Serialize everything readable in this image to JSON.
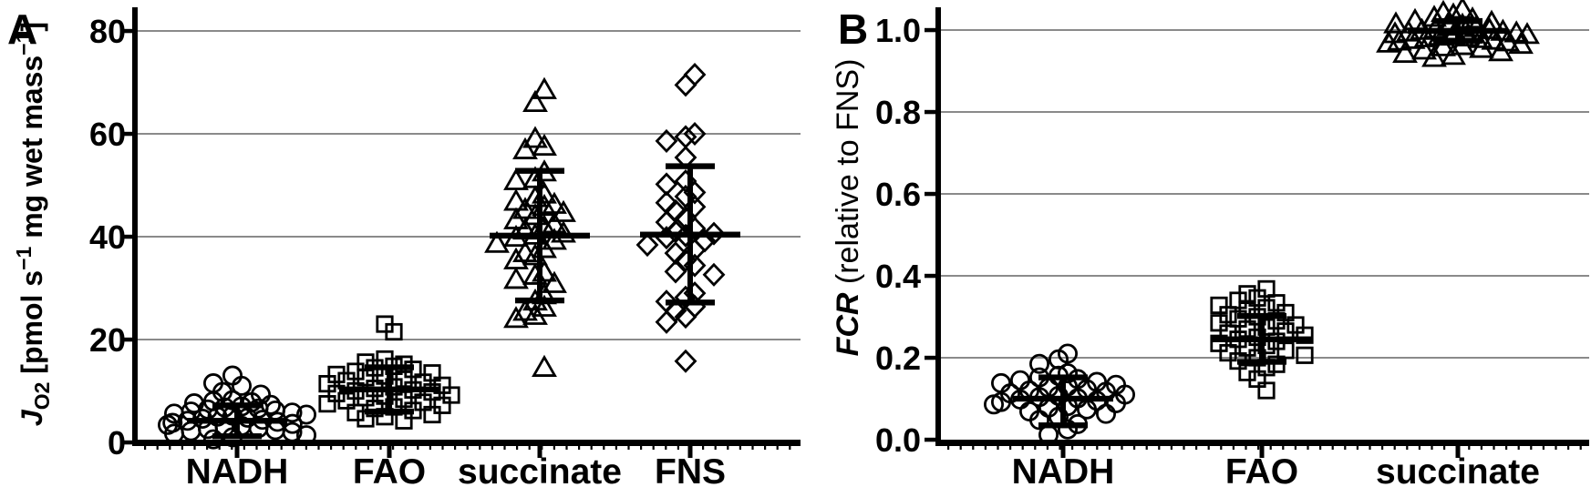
{
  "figure": {
    "background": "#ffffff",
    "ink_color": "#000000",
    "grid_color": "#8a8a8a"
  },
  "chart_data": [
    {
      "panel_label": "A",
      "type": "scatter",
      "ylabel_text": "JO2 [pmol s-1 mg wet mass-1]",
      "ylabel_segments": [
        {
          "t": "J",
          "s": "bi"
        },
        {
          "t": "O2",
          "s": "bsub"
        },
        {
          "t": " [pmol s",
          "s": "b"
        },
        {
          "t": "−1",
          "s": "bsup"
        },
        {
          "t": " mg wet mass",
          "s": "b"
        },
        {
          "t": "−1",
          "s": "bsup"
        },
        {
          "t": "]",
          "s": "b"
        }
      ],
      "ylim": [
        0,
        85
      ],
      "yticks": [
        {
          "value": 0,
          "label": "0"
        },
        {
          "value": 20,
          "label": "20"
        },
        {
          "value": 40,
          "label": "40"
        },
        {
          "value": 60,
          "label": "60"
        },
        {
          "value": 80,
          "label": "80"
        }
      ],
      "grid_values": [
        20,
        40,
        60,
        80
      ],
      "grid_on": true,
      "categories": [
        "NADH",
        "FAO",
        "succinate",
        "FNS"
      ],
      "groups": [
        {
          "category": "NADH",
          "marker": "circle",
          "mean": 4.2,
          "sd_low": 1.2,
          "sd_high": 7.2,
          "values": [
            13.0,
            11.5,
            11.0,
            9.8,
            9.3,
            8.2,
            8.0,
            7.8,
            7.6,
            7.3,
            7.0,
            6.8,
            6.6,
            6.4,
            6.2,
            6.0,
            5.8,
            5.6,
            5.4,
            5.2,
            5.0,
            4.8,
            4.6,
            4.4,
            4.2,
            4.0,
            3.8,
            3.6,
            3.4,
            3.2,
            3.0,
            2.8,
            2.6,
            2.4,
            2.2,
            2.0,
            1.7,
            1.4,
            1.0,
            0.6
          ]
        },
        {
          "category": "FAO",
          "marker": "square",
          "mean": 10.3,
          "sd_low": 6.0,
          "sd_high": 14.6,
          "values": [
            23.0,
            21.5,
            16.2,
            15.6,
            15.2,
            14.8,
            14.5,
            14.2,
            13.8,
            13.5,
            13.2,
            12.9,
            12.6,
            12.3,
            12.0,
            11.7,
            11.4,
            11.1,
            10.8,
            10.5,
            10.2,
            10.0,
            9.8,
            9.5,
            9.2,
            9.0,
            8.7,
            8.4,
            8.1,
            7.8,
            7.5,
            7.2,
            6.9,
            6.6,
            6.2,
            5.8,
            5.4,
            5.0,
            4.6,
            4.2
          ]
        },
        {
          "category": "succinate",
          "marker": "triangle",
          "mean": 40.2,
          "sd_low": 27.6,
          "sd_high": 52.8,
          "values": [
            68.5,
            66.0,
            59.0,
            57.5,
            56.8,
            52.5,
            51.2,
            50.8,
            48.2,
            47.5,
            46.8,
            46.2,
            45.8,
            45.2,
            44.6,
            44.0,
            43.2,
            42.4,
            41.8,
            41.2,
            40.6,
            40.2,
            39.8,
            39.2,
            38.6,
            37.6,
            36.8,
            36.2,
            35.4,
            33.0,
            32.4,
            31.6,
            30.8,
            28.6,
            27.4,
            26.2,
            25.4,
            24.6,
            24.0,
            14.5
          ]
        },
        {
          "category": "FNS",
          "marker": "diamond",
          "mean": 40.4,
          "sd_low": 27.2,
          "sd_high": 53.7,
          "values": [
            71.5,
            69.5,
            60.0,
            59.4,
            58.6,
            55.4,
            50.8,
            50.2,
            48.6,
            47.8,
            46.6,
            45.8,
            45.0,
            43.6,
            42.8,
            41.6,
            41.0,
            40.6,
            40.2,
            39.8,
            39.2,
            38.4,
            37.4,
            36.8,
            35.4,
            34.4,
            33.2,
            32.6,
            29.0,
            28.2,
            27.4,
            26.4,
            25.6,
            24.4,
            23.4,
            15.8
          ]
        }
      ]
    },
    {
      "panel_label": "B",
      "type": "scatter",
      "ylabel_text": "FCR (relative to FNS)",
      "ylabel_segments": [
        {
          "t": "FCR",
          "s": "bi"
        },
        {
          "t": " (relative to FNS)",
          "s": "r"
        }
      ],
      "ylim": [
        0,
        1.055
      ],
      "yticks": [
        {
          "value": 0.0,
          "label": "0.0"
        },
        {
          "value": 0.2,
          "label": "0.2"
        },
        {
          "value": 0.4,
          "label": "0.4"
        },
        {
          "value": 0.6,
          "label": "0.6"
        },
        {
          "value": 0.8,
          "label": "0.8"
        },
        {
          "value": 1.0,
          "label": "1.0"
        }
      ],
      "grid_values": [
        0.2,
        0.4,
        0.6,
        0.8,
        1.0
      ],
      "grid_on": true,
      "categories": [
        "NADH",
        "FAO",
        "succinate"
      ],
      "groups": [
        {
          "category": "NADH",
          "marker": "circle",
          "mean": 0.1,
          "sd_low": 0.035,
          "sd_high": 0.152,
          "values": [
            0.21,
            0.196,
            0.185,
            0.162,
            0.156,
            0.152,
            0.148,
            0.145,
            0.141,
            0.138,
            0.134,
            0.13,
            0.127,
            0.123,
            0.12,
            0.117,
            0.113,
            0.11,
            0.107,
            0.104,
            0.101,
            0.098,
            0.095,
            0.092,
            0.089,
            0.086,
            0.082,
            0.078,
            0.074,
            0.069,
            0.063,
            0.056,
            0.048,
            0.038,
            0.025,
            0.012
          ]
        },
        {
          "category": "FAO",
          "marker": "square",
          "mean": 0.245,
          "sd_low": 0.19,
          "sd_high": 0.302,
          "values": [
            0.368,
            0.356,
            0.346,
            0.34,
            0.334,
            0.328,
            0.322,
            0.316,
            0.31,
            0.305,
            0.3,
            0.295,
            0.29,
            0.285,
            0.28,
            0.275,
            0.27,
            0.265,
            0.26,
            0.255,
            0.25,
            0.245,
            0.24,
            0.235,
            0.23,
            0.224,
            0.218,
            0.212,
            0.206,
            0.2,
            0.192,
            0.184,
            0.176,
            0.164,
            0.148,
            0.12
          ]
        },
        {
          "category": "succinate",
          "marker": "triangle",
          "mean": 0.998,
          "sd_low": 0.974,
          "sd_high": 1.022,
          "values": [
            1.05,
            1.042,
            1.036,
            1.03,
            1.026,
            1.022,
            1.018,
            1.014,
            1.011,
            1.008,
            1.005,
            1.002,
            1.0,
            0.998,
            0.996,
            0.994,
            0.992,
            0.99,
            0.988,
            0.986,
            0.984,
            0.982,
            0.98,
            0.978,
            0.976,
            0.974,
            0.972,
            0.97,
            0.967,
            0.964,
            0.961,
            0.958,
            0.954,
            0.95,
            0.946,
            0.942,
            0.937,
            0.932
          ]
        }
      ]
    }
  ]
}
